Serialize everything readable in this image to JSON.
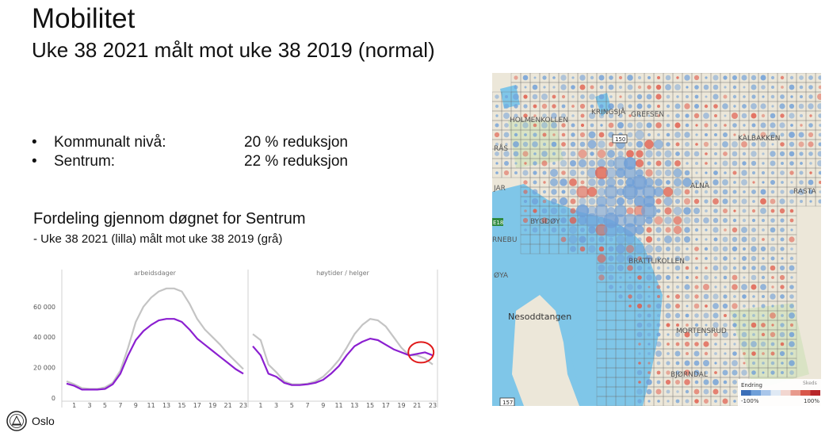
{
  "slide": {
    "title": "Mobilitet",
    "subtitle": "Uke 38 2021 målt mot uke 38 2019 (normal)"
  },
  "bullets": [
    {
      "label": "Kommunalt nivå:",
      "value": "20 % reduksjon"
    },
    {
      "label": "Sentrum:",
      "value": "22 % reduksjon"
    }
  ],
  "distribution": {
    "heading": "Fordeling gjennom døgnet for Sentrum",
    "subheading": "- Uke 38 2021 (lilla) målt mot uke 38 2019 (grå)"
  },
  "chart_data": {
    "type": "line",
    "ylim": [
      0,
      75000
    ],
    "y_ticks": [
      0,
      20000,
      40000,
      60000
    ],
    "y_tick_labels": [
      "0",
      "20 000",
      "40 000",
      "60 000"
    ],
    "x_tick_labels": [
      "1",
      "3",
      "5",
      "7",
      "9",
      "11",
      "13",
      "15",
      "17",
      "19",
      "21",
      "23"
    ],
    "colors": {
      "week38_2021": "#8b1fd0",
      "week38_2019": "#c4c4c4",
      "highlight": "#e01a1a"
    },
    "panels": [
      {
        "title": "arbeidsdager",
        "x": [
          0,
          1,
          2,
          3,
          4,
          5,
          6,
          7,
          8,
          9,
          10,
          11,
          12,
          13,
          14,
          15,
          16,
          17,
          18,
          19,
          20,
          21,
          22,
          23
        ],
        "series": [
          {
            "name": "Uke 38 2019",
            "color": "#c4c4c4",
            "values": [
              11000,
              9000,
              6500,
              6000,
              6000,
              7000,
              10000,
              18000,
              33000,
              50000,
              60000,
              66000,
              70000,
              72000,
              72000,
              70000,
              62000,
              52000,
              45000,
              40000,
              35000,
              29000,
              24000,
              19000
            ]
          },
          {
            "name": "Uke 38 2021",
            "color": "#8b1fd0",
            "values": [
              9500,
              8000,
              5500,
              5500,
              5500,
              6000,
              9000,
              16000,
              28000,
              38000,
              44000,
              48000,
              51000,
              52000,
              52000,
              50000,
              45000,
              39000,
              35000,
              31000,
              27000,
              23000,
              19000,
              16000
            ]
          }
        ]
      },
      {
        "title": "høytider / helger",
        "x": [
          0,
          1,
          2,
          3,
          4,
          5,
          6,
          7,
          8,
          9,
          10,
          11,
          12,
          13,
          14,
          15,
          16,
          17,
          18,
          19,
          20,
          21,
          22,
          23
        ],
        "series": [
          {
            "name": "Uke 38 2019",
            "color": "#c4c4c4",
            "values": [
              42000,
              38000,
              22000,
              17000,
              11000,
              9000,
              9000,
              9500,
              11000,
              14000,
              19000,
              25000,
              33000,
              42000,
              48000,
              52000,
              51000,
              47000,
              40000,
              33000,
              28000,
              28000,
              26000,
              22000
            ]
          },
          {
            "name": "Uke 38 2021",
            "color": "#8b1fd0",
            "values": [
              34000,
              28000,
              16000,
              14000,
              10000,
              8500,
              8500,
              9000,
              10000,
              12000,
              16000,
              21000,
              28000,
              34000,
              37000,
              39000,
              38000,
              35000,
              32000,
              30000,
              28000,
              29000,
              30000,
              28000
            ]
          }
        ]
      }
    ]
  },
  "map": {
    "labels": {
      "holmenkollen": "HOLMENKOLLEN",
      "kringsja": "KRINGSJÅ",
      "grefsen": "GREFSEN",
      "kalbakken": "KALBAKKEN",
      "alna": "ALNA",
      "rasta": "RASTA",
      "bygdoy": "BYGDØY",
      "bratlikollen": "BRATTLIKOLLEN",
      "nesoddtangen": "Nesoddtangen",
      "mortensrud": "MORTENSRUD",
      "bjorndal": "BJØRNDAL",
      "nebu": "RNEBU",
      "oya": "ØYA",
      "jar": "JAR",
      "ras": "RÅS",
      "road_150": "150",
      "road_e18": "E18",
      "road_157": "157"
    },
    "legend": {
      "title": "Endring",
      "min_label": "-100%",
      "max_label": "100%",
      "attribution": "Skeds"
    },
    "colors": {
      "water": "#7fc6e8",
      "land": "#ece7d9",
      "grid": "#6a6a6a",
      "blue": "#6f9fd8",
      "red": "#e05a4a"
    }
  },
  "footer": {
    "logo_text": "Oslo"
  }
}
